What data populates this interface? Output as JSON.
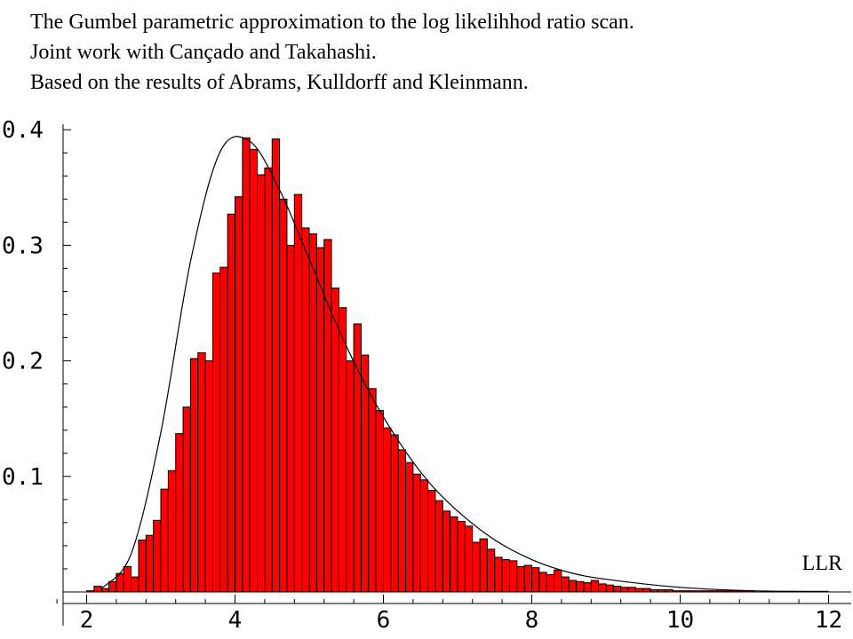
{
  "header": {
    "line1": "The Gumbel parametric approximation to the log likelihhod ratio scan.",
    "line2": "Joint work with Cançado and Takahashi.",
    "line3": "Based on the results of Abrams, Kulldorff and Kleinmann."
  },
  "chart_data": {
    "type": "bar",
    "xlabel": "LLR",
    "ylabel": "",
    "xlim": [
      1.6,
      12.2
    ],
    "ylim": [
      0,
      0.41
    ],
    "xticks": [
      2,
      4,
      6,
      8,
      10,
      12
    ],
    "yticks": [
      0.1,
      0.2,
      0.3,
      0.4
    ],
    "ytick_labels": [
      "0.1",
      "0.2",
      "0.3",
      "0.4"
    ],
    "xtick_labels": [
      "2",
      "4",
      "6",
      "8",
      "10",
      "12"
    ],
    "bin_start": 2.0,
    "bin_width": 0.1,
    "bar_color": "#ff0000",
    "curve_color": "#000000",
    "values": [
      0.001,
      0.005,
      0.003,
      0.009,
      0.016,
      0.022,
      0.013,
      0.045,
      0.049,
      0.062,
      0.089,
      0.105,
      0.137,
      0.16,
      0.202,
      0.207,
      0.2,
      0.276,
      0.281,
      0.327,
      0.342,
      0.393,
      0.383,
      0.361,
      0.367,
      0.392,
      0.34,
      0.3,
      0.344,
      0.315,
      0.31,
      0.298,
      0.305,
      0.263,
      0.246,
      0.2,
      0.232,
      0.205,
      0.176,
      0.157,
      0.142,
      0.136,
      0.123,
      0.112,
      0.102,
      0.097,
      0.088,
      0.079,
      0.07,
      0.065,
      0.061,
      0.057,
      0.043,
      0.046,
      0.037,
      0.03,
      0.028,
      0.027,
      0.022,
      0.023,
      0.021,
      0.017,
      0.015,
      0.019,
      0.013,
      0.01,
      0.009,
      0.008,
      0.01,
      0.007,
      0.006,
      0.005,
      0.004,
      0.004,
      0.003,
      0.003,
      0.002,
      0.002,
      0.002,
      0.001,
      0.001,
      0.001,
      0.001,
      0.001,
      0.001,
      0.001,
      0.001,
      0.001,
      0.001,
      0.001
    ],
    "fit": {
      "type": "Gumbel",
      "x": [
        2.2,
        2.6,
        3.0,
        3.4,
        3.8,
        4.2,
        4.6,
        5.0,
        5.4,
        5.8,
        6.2,
        6.6,
        7.0,
        7.5,
        8.0,
        8.5,
        9.0,
        10.0,
        11.0,
        12.0
      ],
      "y": [
        0.003,
        0.033,
        0.138,
        0.286,
        0.381,
        0.39,
        0.348,
        0.288,
        0.227,
        0.174,
        0.131,
        0.096,
        0.07,
        0.045,
        0.028,
        0.017,
        0.011,
        0.004,
        0.001,
        0.0005
      ]
    }
  }
}
